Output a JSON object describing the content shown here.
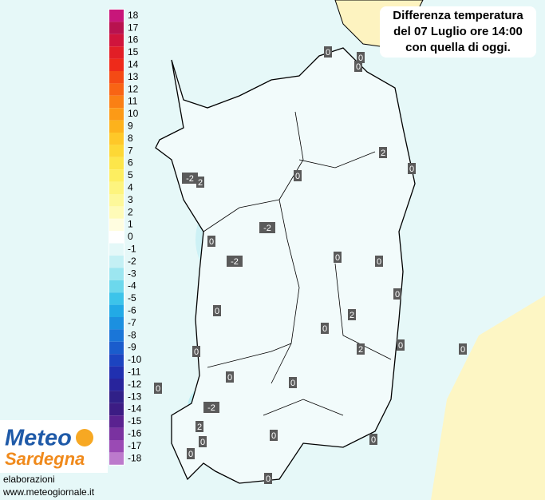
{
  "title": {
    "lines": [
      "Differenza temperatura",
      "del 07 Luglio ore 14:00",
      "con quella di oggi."
    ]
  },
  "legend": {
    "items": [
      {
        "value": 18,
        "color": "#c8167a"
      },
      {
        "value": 17,
        "color": "#b8124f"
      },
      {
        "value": 16,
        "color": "#d0143c"
      },
      {
        "value": 15,
        "color": "#e21e26"
      },
      {
        "value": 14,
        "color": "#ee2a1a"
      },
      {
        "value": 13,
        "color": "#f44a14"
      },
      {
        "value": 12,
        "color": "#f86414"
      },
      {
        "value": 11,
        "color": "#fa8014"
      },
      {
        "value": 10,
        "color": "#fc9a16"
      },
      {
        "value": 9,
        "color": "#fdb21c"
      },
      {
        "value": 8,
        "color": "#fec828"
      },
      {
        "value": 7,
        "color": "#fdd835"
      },
      {
        "value": 6,
        "color": "#fde64a"
      },
      {
        "value": 5,
        "color": "#fdee60"
      },
      {
        "value": 4,
        "color": "#fdf47e"
      },
      {
        "value": 3,
        "color": "#fdf89a"
      },
      {
        "value": 2,
        "color": "#fefbb8"
      },
      {
        "value": 1,
        "color": "#fffde0"
      },
      {
        "value": 0,
        "color": "#ffffff"
      },
      {
        "value": -1,
        "color": "#e4f8f8"
      },
      {
        "value": -2,
        "color": "#c4f0f4"
      },
      {
        "value": -3,
        "color": "#9ce6f0"
      },
      {
        "value": -4,
        "color": "#6cd8ec"
      },
      {
        "value": -5,
        "color": "#3cc4ea"
      },
      {
        "value": -6,
        "color": "#22aae6"
      },
      {
        "value": -7,
        "color": "#1c90e0"
      },
      {
        "value": -8,
        "color": "#1a76d8"
      },
      {
        "value": -9,
        "color": "#1a5ccc"
      },
      {
        "value": -10,
        "color": "#1c44c0"
      },
      {
        "value": -11,
        "color": "#2030b0"
      },
      {
        "value": -12,
        "color": "#28249c"
      },
      {
        "value": -13,
        "color": "#302088"
      },
      {
        "value": -14,
        "color": "#3c1c84"
      },
      {
        "value": -15,
        "color": "#5a2290"
      },
      {
        "value": -16,
        "color": "#7a32a0"
      },
      {
        "value": -17,
        "color": "#9a4ab4"
      },
      {
        "value": -18,
        "color": "#bc7acc"
      }
    ]
  },
  "map_labels": [
    0,
    0,
    0,
    2,
    0,
    0,
    -2,
    2,
    -2,
    0,
    -2,
    0,
    0,
    0,
    0,
    2,
    0,
    0,
    2,
    0,
    0,
    0,
    0,
    0,
    -2,
    2,
    0,
    0,
    0,
    0,
    0
  ],
  "logo": {
    "line1": "Meteo",
    "line2": "Sardegna"
  },
  "credits": [
    "elaborazioni",
    "www.meteogiornale.it"
  ]
}
